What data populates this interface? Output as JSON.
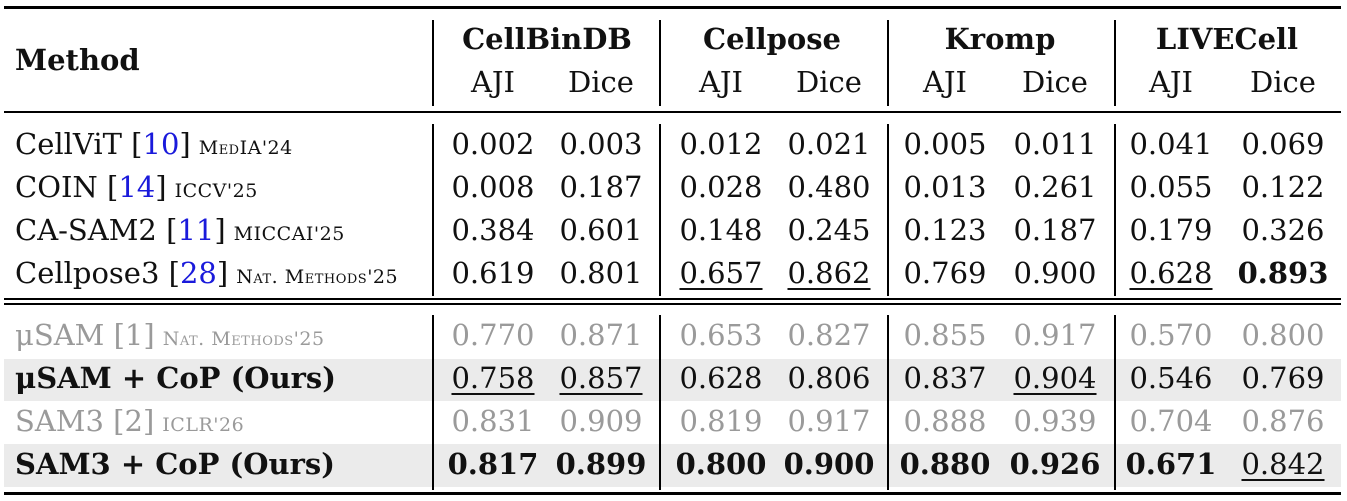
{
  "header": {
    "method_label": "Method",
    "datasets": [
      "CellBinDB",
      "Cellpose",
      "Kromp",
      "LIVECell"
    ],
    "metrics": [
      "AJI",
      "Dice"
    ]
  },
  "rows": [
    {
      "method": "CellViT",
      "cite": "10",
      "venue": "MedIA'24",
      "style": "normal",
      "values": [
        "0.002",
        "0.003",
        "0.012",
        "0.021",
        "0.005",
        "0.011",
        "0.041",
        "0.069"
      ],
      "fmt": [
        "",
        "",
        "",
        "",
        "",
        "",
        "",
        ""
      ]
    },
    {
      "method": "COIN",
      "cite": "14",
      "venue": "ICCV'25",
      "style": "normal",
      "values": [
        "0.008",
        "0.187",
        "0.028",
        "0.480",
        "0.013",
        "0.261",
        "0.055",
        "0.122"
      ],
      "fmt": [
        "",
        "",
        "",
        "",
        "",
        "",
        "",
        ""
      ]
    },
    {
      "method": "CA-SAM2",
      "cite": "11",
      "venue": "MICCAI'25",
      "style": "normal",
      "values": [
        "0.384",
        "0.601",
        "0.148",
        "0.245",
        "0.123",
        "0.187",
        "0.179",
        "0.326"
      ],
      "fmt": [
        "",
        "",
        "",
        "",
        "",
        "",
        "",
        ""
      ]
    },
    {
      "method": "Cellpose3",
      "cite": "28",
      "venue": "Nat. Methods'25",
      "style": "normal",
      "values": [
        "0.619",
        "0.801",
        "0.657",
        "0.862",
        "0.769",
        "0.900",
        "0.628",
        "0.893"
      ],
      "fmt": [
        "",
        "",
        "ul",
        "ul",
        "",
        "",
        "ul",
        "bold"
      ]
    },
    {
      "method": "μSAM",
      "cite": "1",
      "venue": "Nat. Methods'25",
      "style": "gray",
      "values": [
        "0.770",
        "0.871",
        "0.653",
        "0.827",
        "0.855",
        "0.917",
        "0.570",
        "0.800"
      ],
      "fmt": [
        "",
        "",
        "",
        "",
        "",
        "",
        "",
        ""
      ]
    },
    {
      "method": "μSAM + CoP (Ours)",
      "cite": "",
      "venue": "",
      "style": "ours",
      "values": [
        "0.758",
        "0.857",
        "0.628",
        "0.806",
        "0.837",
        "0.904",
        "0.546",
        "0.769"
      ],
      "fmt": [
        "ul",
        "ul",
        "",
        "",
        "",
        "ul",
        "",
        ""
      ]
    },
    {
      "method": "SAM3",
      "cite": "2",
      "venue": "ICLR'26",
      "style": "gray",
      "values": [
        "0.831",
        "0.909",
        "0.819",
        "0.917",
        "0.888",
        "0.939",
        "0.704",
        "0.876"
      ],
      "fmt": [
        "",
        "",
        "",
        "",
        "",
        "",
        "",
        ""
      ]
    },
    {
      "method": "SAM3 + CoP (Ours)",
      "cite": "",
      "venue": "",
      "style": "ours",
      "values": [
        "0.817",
        "0.899",
        "0.800",
        "0.900",
        "0.880",
        "0.926",
        "0.671",
        "0.842"
      ],
      "fmt": [
        "bold",
        "bold",
        "bold",
        "bold",
        "bold",
        "bold",
        "bold",
        "ul"
      ]
    }
  ]
}
